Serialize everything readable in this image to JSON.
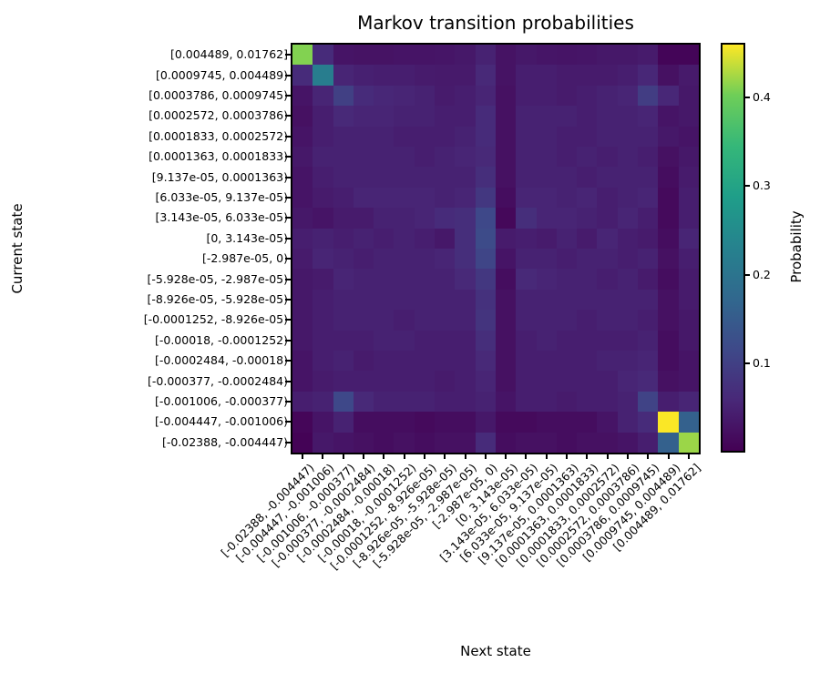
{
  "chart_data": {
    "type": "heatmap",
    "title": "Markov transition probabilities",
    "xlabel": "Next state",
    "ylabel": "Current state",
    "colorbar_label": "Probability",
    "colormap": "viridis",
    "vmin": 0.002,
    "vmax": 0.459,
    "colorbar_ticks": [
      0.1,
      0.2,
      0.3,
      0.4
    ],
    "colorbar_tick_labels": [
      "0.1",
      "0.2",
      "0.3",
      "0.4"
    ],
    "x_tick_labels": [
      "[-0.02388, -0.004447)",
      "[-0.004447, -0.001006)",
      "[-0.001006, -0.000377)",
      "[-0.000377, -0.0002484)",
      "[-0.0002484, -0.00018)",
      "[-0.00018, -0.0001252)",
      "[-0.0001252, -8.926e-05)",
      "[-8.926e-05, -5.928e-05)",
      "[-5.928e-05, -2.987e-05)",
      "[-2.987e-05, 0)",
      "[0, 3.143e-05)",
      "[3.143e-05, 6.033e-05)",
      "[6.033e-05, 9.137e-05)",
      "[9.137e-05, 0.0001363)",
      "[0.0001363, 0.0001833)",
      "[0.0001833, 0.0002572)",
      "[0.0002572, 0.0003786)",
      "[0.0003786, 0.0009745)",
      "[0.0009745, 0.004489)",
      "[0.004489, 0.01762]"
    ],
    "y_tick_labels": [
      "[0.004489, 0.01762]",
      "[0.0009745, 0.004489)",
      "[0.0003786, 0.0009745)",
      "[0.0002572, 0.0003786)",
      "[0.0001833, 0.0002572)",
      "[0.0001363, 0.0001833)",
      "[9.137e-05, 0.0001363)",
      "[6.033e-05, 9.137e-05)",
      "[3.143e-05, 6.033e-05)",
      "[0, 3.143e-05)",
      "[-2.987e-05, 0)",
      "[-5.928e-05, -2.987e-05)",
      "[-8.926e-05, -5.928e-05)",
      "[-0.0001252, -8.926e-05)",
      "[-0.00018, -0.0001252)",
      "[-0.0002484, -0.00018)",
      "[-0.000377, -0.0002484)",
      "[-0.001006, -0.000377)",
      "[-0.004447, -0.001006)",
      "[-0.02388, -0.004447)"
    ],
    "values": [
      [
        0.41,
        0.065,
        0.03,
        0.028,
        0.028,
        0.03,
        0.03,
        0.032,
        0.035,
        0.05,
        0.028,
        0.035,
        0.032,
        0.03,
        0.032,
        0.035,
        0.035,
        0.04,
        0.008,
        0.008
      ],
      [
        0.065,
        0.22,
        0.055,
        0.048,
        0.045,
        0.045,
        0.04,
        0.038,
        0.038,
        0.06,
        0.028,
        0.045,
        0.045,
        0.04,
        0.04,
        0.04,
        0.045,
        0.058,
        0.025,
        0.038
      ],
      [
        0.03,
        0.055,
        0.1,
        0.065,
        0.058,
        0.055,
        0.05,
        0.04,
        0.045,
        0.055,
        0.025,
        0.045,
        0.045,
        0.04,
        0.045,
        0.05,
        0.055,
        0.095,
        0.058,
        0.035
      ],
      [
        0.025,
        0.045,
        0.06,
        0.055,
        0.055,
        0.05,
        0.05,
        0.045,
        0.045,
        0.065,
        0.025,
        0.05,
        0.05,
        0.05,
        0.045,
        0.05,
        0.05,
        0.055,
        0.03,
        0.035
      ],
      [
        0.03,
        0.045,
        0.05,
        0.05,
        0.05,
        0.045,
        0.045,
        0.045,
        0.05,
        0.065,
        0.025,
        0.05,
        0.05,
        0.045,
        0.045,
        0.05,
        0.05,
        0.05,
        0.035,
        0.03
      ],
      [
        0.035,
        0.05,
        0.05,
        0.05,
        0.05,
        0.05,
        0.045,
        0.05,
        0.055,
        0.06,
        0.025,
        0.05,
        0.05,
        0.045,
        0.05,
        0.045,
        0.05,
        0.045,
        0.025,
        0.035
      ],
      [
        0.03,
        0.045,
        0.05,
        0.05,
        0.05,
        0.05,
        0.05,
        0.05,
        0.05,
        0.07,
        0.025,
        0.05,
        0.05,
        0.05,
        0.045,
        0.05,
        0.05,
        0.05,
        0.02,
        0.04
      ],
      [
        0.03,
        0.04,
        0.045,
        0.055,
        0.055,
        0.055,
        0.055,
        0.05,
        0.055,
        0.085,
        0.02,
        0.055,
        0.055,
        0.05,
        0.055,
        0.045,
        0.05,
        0.055,
        0.015,
        0.045
      ],
      [
        0.035,
        0.03,
        0.04,
        0.04,
        0.05,
        0.05,
        0.055,
        0.065,
        0.07,
        0.115,
        0.012,
        0.07,
        0.055,
        0.055,
        0.05,
        0.045,
        0.055,
        0.045,
        0.015,
        0.045
      ],
      [
        0.045,
        0.05,
        0.045,
        0.05,
        0.045,
        0.05,
        0.045,
        0.035,
        0.07,
        0.12,
        0.04,
        0.045,
        0.04,
        0.05,
        0.04,
        0.055,
        0.045,
        0.04,
        0.02,
        0.055
      ],
      [
        0.04,
        0.055,
        0.05,
        0.045,
        0.05,
        0.05,
        0.05,
        0.055,
        0.07,
        0.11,
        0.03,
        0.05,
        0.05,
        0.045,
        0.05,
        0.05,
        0.045,
        0.05,
        0.025,
        0.045
      ],
      [
        0.035,
        0.04,
        0.055,
        0.05,
        0.05,
        0.05,
        0.05,
        0.05,
        0.06,
        0.085,
        0.02,
        0.06,
        0.055,
        0.05,
        0.05,
        0.045,
        0.05,
        0.04,
        0.02,
        0.04
      ],
      [
        0.035,
        0.045,
        0.05,
        0.05,
        0.05,
        0.05,
        0.05,
        0.05,
        0.05,
        0.075,
        0.025,
        0.05,
        0.05,
        0.05,
        0.05,
        0.05,
        0.05,
        0.05,
        0.025,
        0.04
      ],
      [
        0.035,
        0.045,
        0.05,
        0.05,
        0.05,
        0.045,
        0.05,
        0.05,
        0.05,
        0.08,
        0.025,
        0.05,
        0.05,
        0.05,
        0.045,
        0.05,
        0.05,
        0.045,
        0.025,
        0.035
      ],
      [
        0.035,
        0.045,
        0.045,
        0.045,
        0.05,
        0.05,
        0.045,
        0.045,
        0.045,
        0.07,
        0.025,
        0.045,
        0.05,
        0.045,
        0.045,
        0.045,
        0.045,
        0.05,
        0.02,
        0.035
      ],
      [
        0.03,
        0.045,
        0.05,
        0.04,
        0.045,
        0.045,
        0.045,
        0.045,
        0.045,
        0.06,
        0.025,
        0.045,
        0.045,
        0.045,
        0.045,
        0.05,
        0.05,
        0.055,
        0.02,
        0.03
      ],
      [
        0.03,
        0.04,
        0.045,
        0.045,
        0.045,
        0.045,
        0.045,
        0.04,
        0.045,
        0.055,
        0.025,
        0.045,
        0.045,
        0.045,
        0.045,
        0.045,
        0.055,
        0.06,
        0.025,
        0.03
      ],
      [
        0.045,
        0.05,
        0.115,
        0.06,
        0.05,
        0.05,
        0.05,
        0.045,
        0.045,
        0.05,
        0.03,
        0.045,
        0.045,
        0.04,
        0.045,
        0.045,
        0.05,
        0.105,
        0.045,
        0.055
      ],
      [
        0.01,
        0.03,
        0.05,
        0.02,
        0.02,
        0.02,
        0.015,
        0.02,
        0.02,
        0.035,
        0.015,
        0.015,
        0.02,
        0.02,
        0.02,
        0.03,
        0.05,
        0.065,
        0.458,
        0.16
      ],
      [
        0.005,
        0.035,
        0.03,
        0.025,
        0.02,
        0.025,
        0.02,
        0.025,
        0.025,
        0.065,
        0.02,
        0.025,
        0.025,
        0.02,
        0.025,
        0.025,
        0.03,
        0.045,
        0.16,
        0.42
      ]
    ]
  },
  "colors": {
    "background": "#ffffff",
    "text": "#000000",
    "spine": "#000000",
    "viridis_stops": [
      "#440154",
      "#482878",
      "#3e4989",
      "#31688e",
      "#26828e",
      "#1f9e89",
      "#35b779",
      "#6ece58",
      "#fde725"
    ]
  }
}
